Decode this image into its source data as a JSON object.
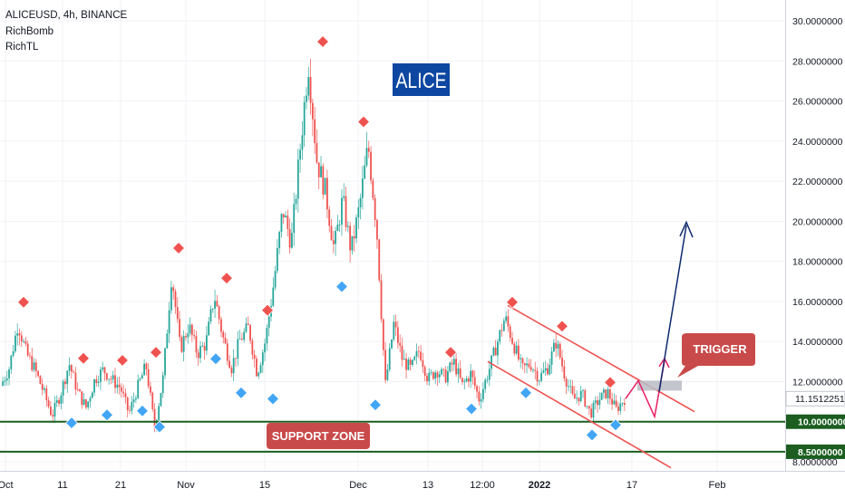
{
  "chart_data": {
    "type": "candlestick",
    "symbol_line": "ALICEUSD, 4h, BINANCE",
    "indicators": [
      "RichBomb",
      "RichTL"
    ],
    "title_badge": "ALICE",
    "y_axis": {
      "scale": "linear",
      "range": [
        7.6,
        30.6
      ],
      "tick_values": [
        8,
        10,
        12,
        14,
        16,
        18,
        20,
        22,
        24,
        26,
        28,
        30
      ],
      "tick_labels": [
        "8.0000000",
        "10.0000000",
        "12.0000000",
        "14.0000000",
        "16.0000000",
        "18.0000000",
        "20.0000000",
        "22.0000000",
        "24.0000000",
        "26.0000000",
        "28.0000000",
        "30.0000000"
      ]
    },
    "x_axis": {
      "tick_labels": [
        "Oct",
        "11",
        "21",
        "Nov",
        "15",
        "Dec",
        "13",
        "12:00",
        "2022",
        "17",
        "Feb"
      ]
    },
    "current_price": {
      "label": "11.1512251",
      "value": 11.1512251
    },
    "price_lines": [
      {
        "value": 10.0,
        "label": "10.0000000",
        "color": "#1b5e20"
      },
      {
        "value": 8.5,
        "label": "8.5000000",
        "color": "#1b5e20"
      }
    ],
    "annotations": {
      "support_zone": "SUPPORT ZONE",
      "trigger": "TRIGGER"
    },
    "price_path": [
      [
        11.6,
        11.8
      ],
      [
        13.2,
        12.7
      ],
      [
        15.6,
        14.9
      ],
      [
        13.1,
        13.4
      ],
      [
        12.2,
        12.6
      ],
      [
        11.8,
        11.5
      ],
      [
        10.6,
        10.3
      ],
      [
        11.7,
        11.4
      ],
      [
        12.7,
        12.9
      ],
      [
        11.3,
        11.5
      ],
      [
        10.9,
        10.7
      ],
      [
        12.3,
        12.1
      ],
      [
        12.9,
        12.6
      ],
      [
        11.9,
        12.1
      ],
      [
        11.4,
        11.7
      ],
      [
        10.6,
        10.4
      ],
      [
        12.4,
        11.7
      ],
      [
        13.1,
        12.8
      ],
      [
        10.2,
        9.7
      ],
      [
        12.6,
        12.2
      ],
      [
        18.3,
        17.4
      ],
      [
        14.1,
        13.6
      ],
      [
        15.2,
        14.8
      ],
      [
        13.1,
        13.4
      ],
      [
        13.6,
        13.9
      ],
      [
        16.8,
        16.3
      ],
      [
        14.6,
        14.2
      ],
      [
        12.4,
        12.7
      ],
      [
        13.6,
        14.1
      ],
      [
        15.2,
        14.7
      ],
      [
        12.1,
        12.4
      ],
      [
        14.6,
        14.1
      ],
      [
        17.6,
        17.1
      ],
      [
        21.0,
        20.6
      ],
      [
        18.6,
        18.9
      ],
      [
        23.9,
        23.5
      ],
      [
        28.6,
        27.9
      ],
      [
        23.6,
        23.0
      ],
      [
        21.0,
        21.5
      ],
      [
        18.9,
        18.6
      ],
      [
        21.6,
        21.1
      ],
      [
        18.2,
        18.5
      ],
      [
        21.2,
        20.8
      ],
      [
        24.6,
        23.8
      ],
      [
        19.2,
        19.6
      ],
      [
        11.3,
        11.8
      ],
      [
        15.4,
        14.9
      ],
      [
        12.9,
        13.1
      ],
      [
        12.4,
        12.6
      ],
      [
        13.9,
        13.6
      ],
      [
        11.9,
        12.1
      ],
      [
        12.4,
        12.6
      ],
      [
        12.0,
        12.2
      ],
      [
        13.2,
        13.0
      ],
      [
        11.6,
        11.8
      ],
      [
        12.6,
        12.4
      ],
      [
        11.3,
        11.1
      ],
      [
        12.6,
        12.4
      ],
      [
        14.0,
        13.8
      ],
      [
        15.6,
        15.2
      ],
      [
        14.1,
        13.9
      ],
      [
        12.4,
        12.6
      ],
      [
        13.2,
        12.9
      ],
      [
        12.0,
        12.2
      ],
      [
        12.9,
        12.7
      ],
      [
        14.4,
        14.0
      ],
      [
        12.1,
        12.3
      ],
      [
        10.8,
        11.1
      ],
      [
        11.6,
        11.4
      ],
      [
        10.2,
        10.4
      ],
      [
        11.3,
        11.1
      ],
      [
        11.6,
        11.5
      ],
      [
        10.3,
        10.6
      ],
      [
        11.15,
        11.15
      ]
    ],
    "markers": {
      "tops": [
        15.6,
        12.8,
        12.7,
        13.1,
        18.3,
        16.8,
        15.2,
        28.6,
        24.6,
        13.1,
        15.6,
        14.4,
        11.6
      ],
      "bottoms": [
        10.3,
        10.7,
        10.9,
        10.1,
        13.5,
        11.8,
        11.5,
        17.1,
        11.2,
        11.0,
        11.8,
        9.7,
        10.2
      ]
    },
    "channel": [
      {
        "from": [
          14.0,
          14.0
        ],
        "to": [
          0,
          0
        ]
      }
    ],
    "colors": {
      "up": "#26a69a",
      "down": "#ef5350",
      "marker_top": "#ef5350",
      "marker_bottom": "#42a5f5",
      "channel": "#ef5350",
      "projection_up": "#0d2a6e",
      "projection_zigzag": "#e91e63",
      "badge_bg": "#0d47a1",
      "label_bg": "#c62828"
    }
  }
}
